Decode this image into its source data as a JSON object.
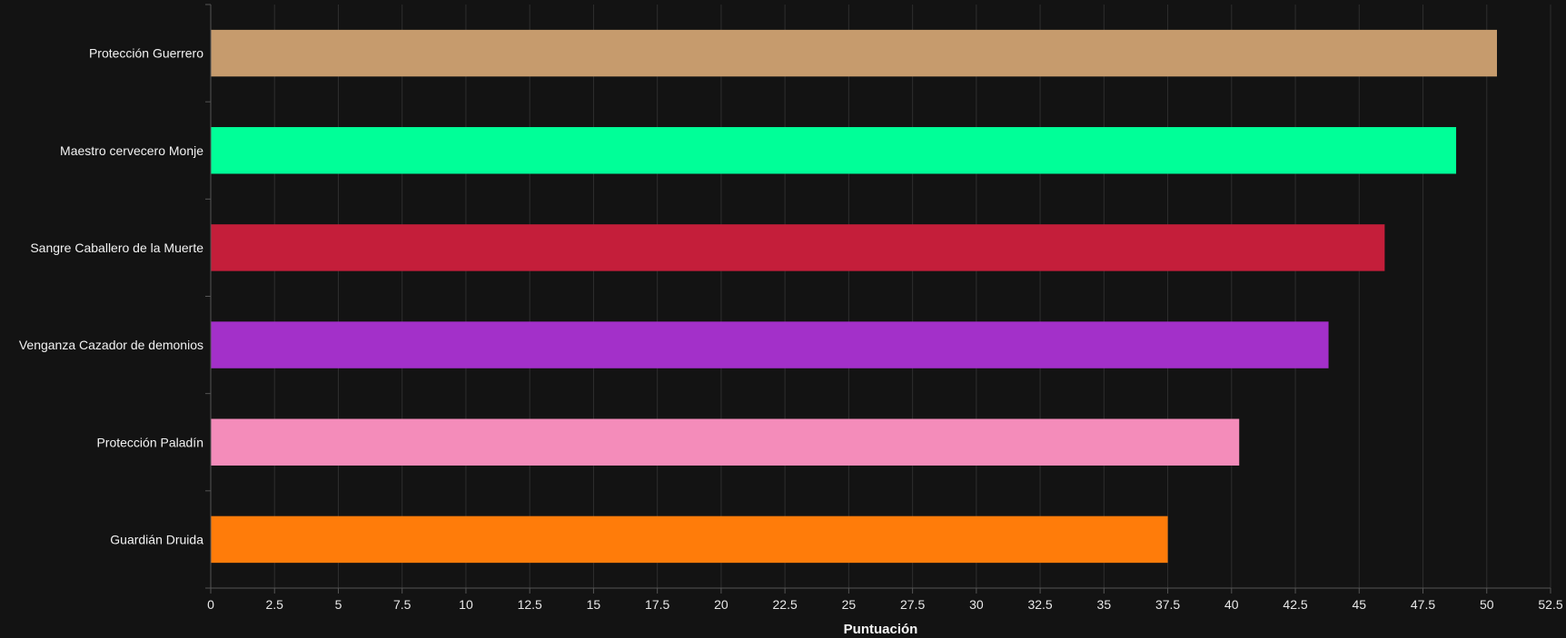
{
  "chart_data": {
    "type": "bar",
    "orientation": "horizontal",
    "categories": [
      "Protección Guerrero",
      "Maestro cervecero Monje",
      "Sangre Caballero de la Muerte",
      "Venganza Cazador de demonios",
      "Protección Paladín",
      "Guardián Druida"
    ],
    "values": [
      50.4,
      48.8,
      46.0,
      43.8,
      40.3,
      37.5
    ],
    "colors": [
      "#C69B6D",
      "#00FF98",
      "#C41E3A",
      "#A330C9",
      "#F48CBA",
      "#FF7C0A"
    ],
    "title": "",
    "xlabel": "Puntuación",
    "ylabel": "",
    "xlim": [
      0,
      52.5
    ],
    "xticks": [
      "0",
      "2.5",
      "5",
      "7.5",
      "10",
      "12.5",
      "15",
      "17.5",
      "20",
      "22.5",
      "25",
      "27.5",
      "30",
      "32.5",
      "35",
      "37.5",
      "40",
      "42.5",
      "45",
      "47.5",
      "50",
      "52.5"
    ],
    "grid": "vertical",
    "legend": "none",
    "background": "#131313",
    "gridline_color": "#2e2e2e",
    "axis_color": "#555555"
  }
}
